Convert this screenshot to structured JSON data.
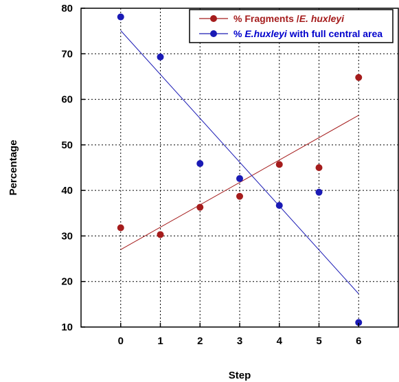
{
  "chart_data": {
    "type": "scatter",
    "xlabel": "Step",
    "ylabel": "Percentage",
    "xlim": [
      -1,
      7
    ],
    "ylim": [
      10,
      80
    ],
    "x_ticks": [
      0,
      1,
      2,
      3,
      4,
      5,
      6
    ],
    "y_ticks": [
      10,
      20,
      30,
      40,
      50,
      60,
      70,
      80
    ],
    "grid": true,
    "legend_position": "top-right",
    "series": [
      {
        "name_prefix": "% Fragments /",
        "name_italic": "E. huxleyi",
        "name_suffix": "",
        "color": "#a51c1c",
        "text_color": "#a51c1c",
        "x": [
          0,
          1,
          2,
          3,
          4,
          5,
          6
        ],
        "y": [
          31.8,
          30.3,
          36.3,
          38.7,
          45.7,
          45.0,
          64.8
        ],
        "trendline": [
          [
            0,
            27.0
          ],
          [
            6,
            56.5
          ]
        ]
      },
      {
        "name_prefix": "% ",
        "name_italic": "E.huxleyi",
        "name_suffix": " with full central area",
        "color": "#1a1ab5",
        "text_color": "#0000cc",
        "x": [
          0,
          1,
          2,
          3,
          4,
          5,
          6
        ],
        "y": [
          78.1,
          69.3,
          45.9,
          42.6,
          36.7,
          39.6,
          11.0
        ],
        "trendline": [
          [
            0,
            75.1
          ],
          [
            6,
            17.3
          ]
        ]
      }
    ]
  }
}
